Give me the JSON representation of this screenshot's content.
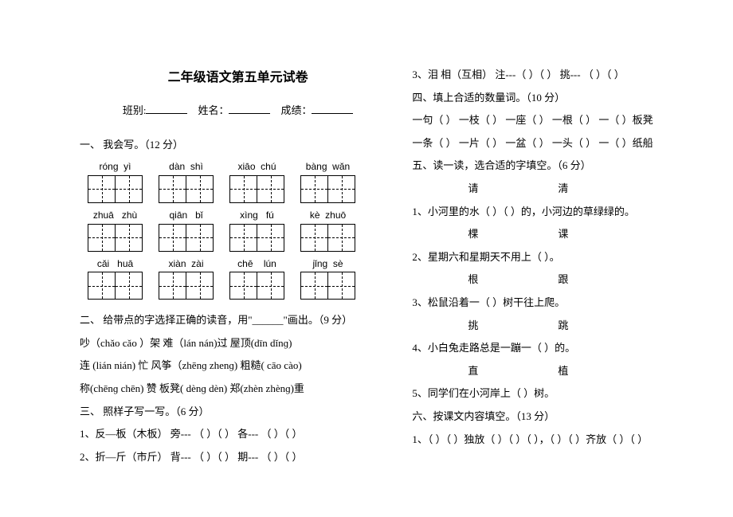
{
  "title": "二年级语文第五单元试卷",
  "info": {
    "class_label": "班别:",
    "name_label": "姓名：",
    "score_label": "成绩："
  },
  "left": {
    "s1": "一、 我会写。（12 分）",
    "pinyin_rows": [
      [
        "rónɡ  yì",
        "dàn  shì",
        "xiāo  chú",
        "bànɡ  wǎn"
      ],
      [
        "zhuā   zhù",
        "qiān   bǐ",
        "xìnɡ   fú",
        "kè  zhuō"
      ],
      [
        "cǎi   huā",
        "xiàn  zài",
        "chē    lún",
        "jǐnɡ  sè"
      ]
    ],
    "s2": "二、 给带点的字选择正确的读音，用\"______\"画出。（9 分）",
    "s2_lines": [
      "吵（chǎo  cǎo ）架          难（lán     nán)过           屋顶(dīn   dǐnɡ)",
      "连 (lián    nián)  忙           风筝（zhēnɡ  zhenɡ)          粗糙( cāo     cào)",
      "称(chēnɡ   chēn)  赞          板凳( dènɡ    dèn)          郑(zhèn  zhènɡ)重"
    ],
    "s3": "三、 照样子写一写。（6 分）",
    "s3_lines": [
      "1、反—板（木板）   旁--- （     ）（         ）    各--- （     ）（         ）",
      "2、折—斤（市斤）   背--- （     ）（         ）    期--- （     ）（         ）"
    ]
  },
  "right": {
    "s3_line3": "3、泪  相（互相）    注---（     ）（         ）       挑--- （     ）（         ）",
    "s4": "四、填上合适的数量词。（10 分）",
    "s4_lines": [
      "一句（     ）  一枝（     ）    一座（     ）     一根（     ）      一（     ）板凳",
      "一条（     ）  一片（     ）    一盆（     ）     一头（     ）      一（     ）纸船"
    ],
    "s5": "五、读一读，选合适的字填空。（6 分）",
    "pairs": [
      {
        "a": "请",
        "b": "清"
      },
      {
        "a": "棵",
        "b": "课"
      },
      {
        "a": "根",
        "b": "跟"
      },
      {
        "a": "挑",
        "b": "跳"
      },
      {
        "a": "直",
        "b": "植"
      }
    ],
    "s5_lines": [
      "1、小河里的水（        ）（        ）的，小河边的草绿绿的。",
      "2、星期六和星期天不用上（        ）。",
      "3、松鼠沿着一（          ）树干往上爬。",
      "4、小白兔走路总是一蹦一（          ）的。",
      "5、同学们在小河岸上（            ）树。"
    ],
    "s6": "六、按课文内容填空。（13 分）",
    "s6_lines": [
      "1、（     ）（     ）独放（     ）（     ）（     ），（     ）（     ）齐放（     ）（     ）"
    ]
  }
}
